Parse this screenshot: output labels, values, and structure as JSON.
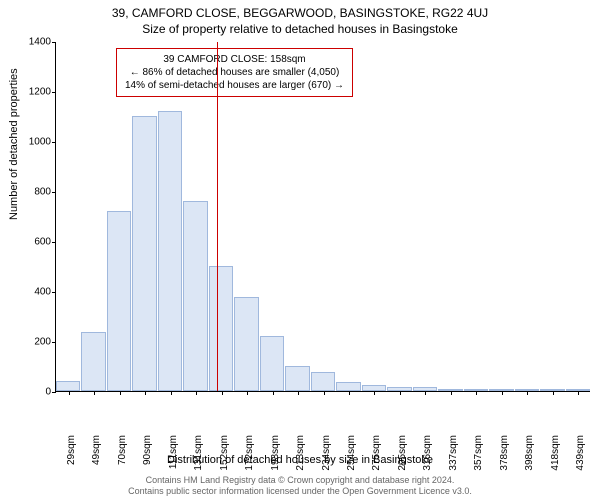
{
  "chart": {
    "type": "histogram",
    "title_main": "39, CAMFORD CLOSE, BEGGARWOOD, BASINGSTOKE, RG22 4UJ",
    "title_sub": "Size of property relative to detached houses in Basingstoke",
    "ylabel": "Number of detached properties",
    "xlabel": "Distribution of detached houses by size in Basingstoke",
    "background_color": "#ffffff",
    "bar_fill_color": "#dce6f5",
    "bar_border_color": "#a0b8dd",
    "vline_color": "#cc0000",
    "annotation_border_color": "#cc0000",
    "ylim_max": 1400,
    "ytick_step": 200,
    "yticks": [
      0,
      200,
      400,
      600,
      800,
      1000,
      1200,
      1400
    ],
    "xticks": [
      "29sqm",
      "49sqm",
      "70sqm",
      "90sqm",
      "111sqm",
      "131sqm",
      "152sqm",
      "172sqm",
      "193sqm",
      "213sqm",
      "234sqm",
      "254sqm",
      "275sqm",
      "295sqm",
      "316sqm",
      "337sqm",
      "357sqm",
      "378sqm",
      "398sqm",
      "418sqm",
      "439sqm"
    ],
    "bar_values": [
      40,
      235,
      720,
      1100,
      1120,
      760,
      500,
      375,
      220,
      100,
      75,
      35,
      25,
      15,
      15,
      10,
      5,
      8,
      0,
      0,
      3
    ],
    "vline_x_value": "158sqm",
    "vline_x_index": 6.3,
    "annotation": {
      "line1": "39 CAMFORD CLOSE: 158sqm",
      "line2": "← 86% of detached houses are smaller (4,050)",
      "line3": "14% of semi-detached houses are larger (670) →"
    },
    "footer_line1": "Contains HM Land Registry data © Crown copyright and database right 2024.",
    "footer_line2": "Contains public sector information licensed under the Open Government Licence v3.0.",
    "title_fontsize": 12,
    "label_fontsize": 11,
    "tick_fontsize": 10,
    "annotation_fontsize": 10,
    "footer_fontsize": 9,
    "footer_color": "#666666"
  }
}
